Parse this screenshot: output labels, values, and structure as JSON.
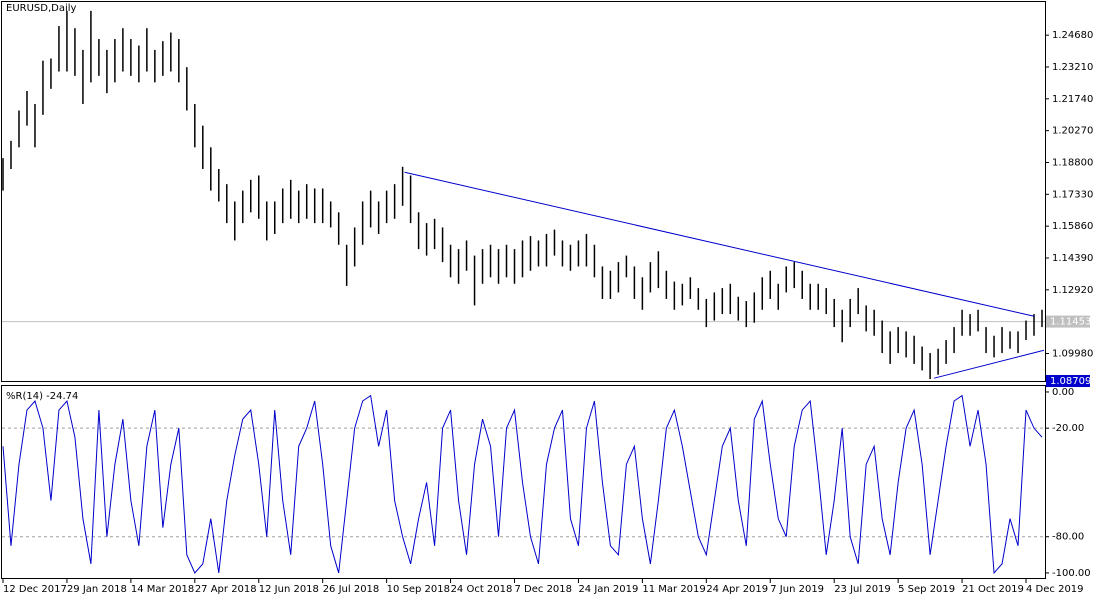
{
  "chart_data": [
    {
      "type": "ohlc",
      "title": "EURUSD,Daily",
      "x": [
        0,
        4,
        8,
        12,
        16,
        20,
        24,
        28,
        32,
        36,
        40,
        44,
        48,
        52,
        56,
        60,
        64,
        68,
        72,
        76,
        80,
        84,
        88,
        92,
        96,
        100,
        104,
        108,
        112,
        116,
        120,
        124,
        128,
        132,
        136,
        140,
        144,
        148,
        152,
        156,
        160,
        164,
        168,
        172,
        176,
        180,
        184,
        188,
        192,
        196,
        200,
        204,
        208,
        212,
        216,
        220,
        224,
        228,
        232,
        236,
        240,
        244,
        248,
        252,
        256,
        260,
        264,
        268,
        272,
        276,
        280,
        284,
        288,
        292,
        296,
        300,
        304,
        308,
        312,
        316,
        320,
        324,
        328,
        332,
        336,
        340,
        344,
        348,
        352,
        356,
        360,
        364,
        368,
        372,
        376,
        380,
        384,
        388,
        392,
        396,
        400,
        404,
        408,
        412,
        416,
        420,
        424,
        428,
        432,
        436,
        440,
        444,
        448,
        452,
        456,
        460,
        464,
        468,
        472,
        476,
        480,
        484,
        488,
        492,
        496,
        500,
        504,
        508,
        512,
        516,
        520
      ],
      "high": [
        1.19,
        1.198,
        1.212,
        1.221,
        1.215,
        1.235,
        1.236,
        1.251,
        1.258,
        1.25,
        1.24,
        1.258,
        1.245,
        1.24,
        1.245,
        1.25,
        1.245,
        1.242,
        1.25,
        1.24,
        1.244,
        1.248,
        1.245,
        1.232,
        1.215,
        1.205,
        1.195,
        1.185,
        1.178,
        1.17,
        1.175,
        1.18,
        1.182,
        1.17,
        1.17,
        1.176,
        1.18,
        1.175,
        1.178,
        1.176,
        1.176,
        1.17,
        1.165,
        1.15,
        1.158,
        1.17,
        1.175,
        1.17,
        1.175,
        1.178,
        1.186,
        1.182,
        1.165,
        1.16,
        1.162,
        1.158,
        1.15,
        1.148,
        1.152,
        1.145,
        1.148,
        1.15,
        1.148,
        1.15,
        1.148,
        1.152,
        1.154,
        1.152,
        1.155,
        1.157,
        1.152,
        1.15,
        1.152,
        1.155,
        1.15,
        1.14,
        1.138,
        1.142,
        1.145,
        1.14,
        1.135,
        1.142,
        1.147,
        1.138,
        1.133,
        1.132,
        1.135,
        1.13,
        1.125,
        1.128,
        1.13,
        1.132,
        1.126,
        1.124,
        1.128,
        1.135,
        1.138,
        1.132,
        1.14,
        1.142,
        1.138,
        1.132,
        1.132,
        1.13,
        1.125,
        1.12,
        1.125,
        1.13,
        1.122,
        1.12,
        1.115,
        1.11,
        1.112,
        1.11,
        1.108,
        1.103,
        1.1,
        1.102,
        1.106,
        1.112,
        1.12,
        1.118,
        1.12,
        1.112,
        1.108,
        1.112,
        1.11,
        1.11,
        1.115,
        1.118,
        1.12
      ],
      "low": [
        1.175,
        1.185,
        1.195,
        1.205,
        1.195,
        1.21,
        1.222,
        1.23,
        1.23,
        1.228,
        1.215,
        1.225,
        1.228,
        1.22,
        1.225,
        1.23,
        1.228,
        1.225,
        1.23,
        1.225,
        1.228,
        1.23,
        1.225,
        1.212,
        1.195,
        1.185,
        1.175,
        1.17,
        1.16,
        1.152,
        1.16,
        1.165,
        1.162,
        1.152,
        1.155,
        1.16,
        1.162,
        1.16,
        1.162,
        1.16,
        1.16,
        1.158,
        1.15,
        1.131,
        1.14,
        1.15,
        1.158,
        1.155,
        1.16,
        1.162,
        1.168,
        1.16,
        1.148,
        1.145,
        1.148,
        1.142,
        1.135,
        1.132,
        1.138,
        1.122,
        1.132,
        1.135,
        1.132,
        1.135,
        1.132,
        1.135,
        1.138,
        1.14,
        1.14,
        1.145,
        1.14,
        1.138,
        1.14,
        1.14,
        1.135,
        1.125,
        1.125,
        1.128,
        1.135,
        1.125,
        1.12,
        1.128,
        1.13,
        1.125,
        1.12,
        1.122,
        1.125,
        1.12,
        1.112,
        1.115,
        1.118,
        1.118,
        1.115,
        1.112,
        1.114,
        1.12,
        1.125,
        1.12,
        1.128,
        1.13,
        1.125,
        1.12,
        1.12,
        1.118,
        1.112,
        1.105,
        1.112,
        1.118,
        1.11,
        1.108,
        1.1,
        1.095,
        1.1,
        1.098,
        1.095,
        1.092,
        1.088,
        1.09,
        1.095,
        1.1,
        1.108,
        1.108,
        1.11,
        1.1,
        1.098,
        1.1,
        1.102,
        1.1,
        1.106,
        1.108,
        1.112
      ],
      "color": "#000000",
      "xlim": [
        0,
        521
      ],
      "ylim": [
        1.0871,
        1.2621
      ],
      "yticks": [
        {
          "value": 1.2468,
          "label": "1.24680"
        },
        {
          "value": 1.2321,
          "label": "1.23210"
        },
        {
          "value": 1.2174,
          "label": "1.21740"
        },
        {
          "value": 1.2027,
          "label": "1.20270"
        },
        {
          "value": 1.188,
          "label": "1.18800"
        },
        {
          "value": 1.1733,
          "label": "1.17330"
        },
        {
          "value": 1.1586,
          "label": "1.15860"
        },
        {
          "value": 1.1439,
          "label": "1.14390"
        },
        {
          "value": 1.1292,
          "label": "1.12920"
        },
        {
          "value": 1.0998,
          "label": "1.09980"
        }
      ],
      "current_price": 1.11453,
      "low_price": 1.08709,
      "trendlines": [
        {
          "x": [
            201,
            516
          ],
          "y": [
            1.1835,
            1.117
          ],
          "color": "#0000cc"
        },
        {
          "x": [
            466,
            521
          ],
          "y": [
            1.0884,
            1.1013
          ],
          "color": "#0000cc"
        }
      ]
    },
    {
      "type": "line",
      "title": "%R(14) -24.74",
      "values": [
        -30,
        -85,
        -40,
        -10,
        -5,
        -20,
        -60,
        -10,
        -5,
        -25,
        -70,
        -95,
        -10,
        -80,
        -40,
        -15,
        -60,
        -85,
        -30,
        -10,
        -75,
        -40,
        -20,
        -90,
        -100,
        -95,
        -70,
        -100,
        -60,
        -35,
        -15,
        -10,
        -40,
        -80,
        -10,
        -60,
        -90,
        -30,
        -20,
        -5,
        -40,
        -85,
        -100,
        -60,
        -20,
        -5,
        -2,
        -30,
        -10,
        -60,
        -80,
        -95,
        -70,
        -50,
        -85,
        -20,
        -10,
        -60,
        -90,
        -40,
        -15,
        -30,
        -80,
        -20,
        -10,
        -50,
        -80,
        -95,
        -40,
        -20,
        -10,
        -70,
        -85,
        -20,
        -5,
        -50,
        -85,
        -90,
        -40,
        -30,
        -70,
        -95,
        -60,
        -20,
        -10,
        -30,
        -55,
        -80,
        -90,
        -60,
        -30,
        -20,
        -60,
        -85,
        -15,
        -5,
        -40,
        -70,
        -80,
        -30,
        -10,
        -5,
        -45,
        -90,
        -60,
        -20,
        -80,
        -95,
        -40,
        -30,
        -70,
        -90,
        -50,
        -20,
        -10,
        -40,
        -90,
        -60,
        -30,
        -5,
        -2,
        -30,
        -10,
        -40,
        -100,
        -95,
        -70,
        -85,
        -10,
        -20,
        -25
      ],
      "color": "#0000cc",
      "ylim": [
        -102.8,
        3.3
      ],
      "yticks": [
        {
          "value": 0,
          "label": "0.00"
        },
        {
          "value": -20,
          "label": "-20.00"
        },
        {
          "value": -80,
          "label": "-80.00"
        },
        {
          "value": -100,
          "label": "-100.00"
        }
      ],
      "levels": [
        -20,
        -80
      ],
      "xticks": [
        {
          "value": 0,
          "label": "12 Dec 2017"
        },
        {
          "value": 32,
          "label": "29 Jan 2018"
        },
        {
          "value": 64,
          "label": "14 Mar 2018"
        },
        {
          "value": 96,
          "label": "27 Apr 2018"
        },
        {
          "value": 128,
          "label": "12 Jun 2018"
        },
        {
          "value": 160,
          "label": "26 Jul 2018"
        },
        {
          "value": 192,
          "label": "10 Sep 2018"
        },
        {
          "value": 224,
          "label": "24 Oct 2018"
        },
        {
          "value": 256,
          "label": "7 Dec 2018"
        },
        {
          "value": 288,
          "label": "24 Jan 2019"
        },
        {
          "value": 320,
          "label": "11 Mar 2019"
        },
        {
          "value": 352,
          "label": "24 Apr 2019"
        },
        {
          "value": 384,
          "label": "7 Jun 2019"
        },
        {
          "value": 416,
          "label": "23 Jul 2019"
        },
        {
          "value": 448,
          "label": "5 Sep 2019"
        },
        {
          "value": 480,
          "label": "21 Oct 2019"
        },
        {
          "value": 512,
          "label": "4 Dec 2019"
        }
      ]
    }
  ]
}
